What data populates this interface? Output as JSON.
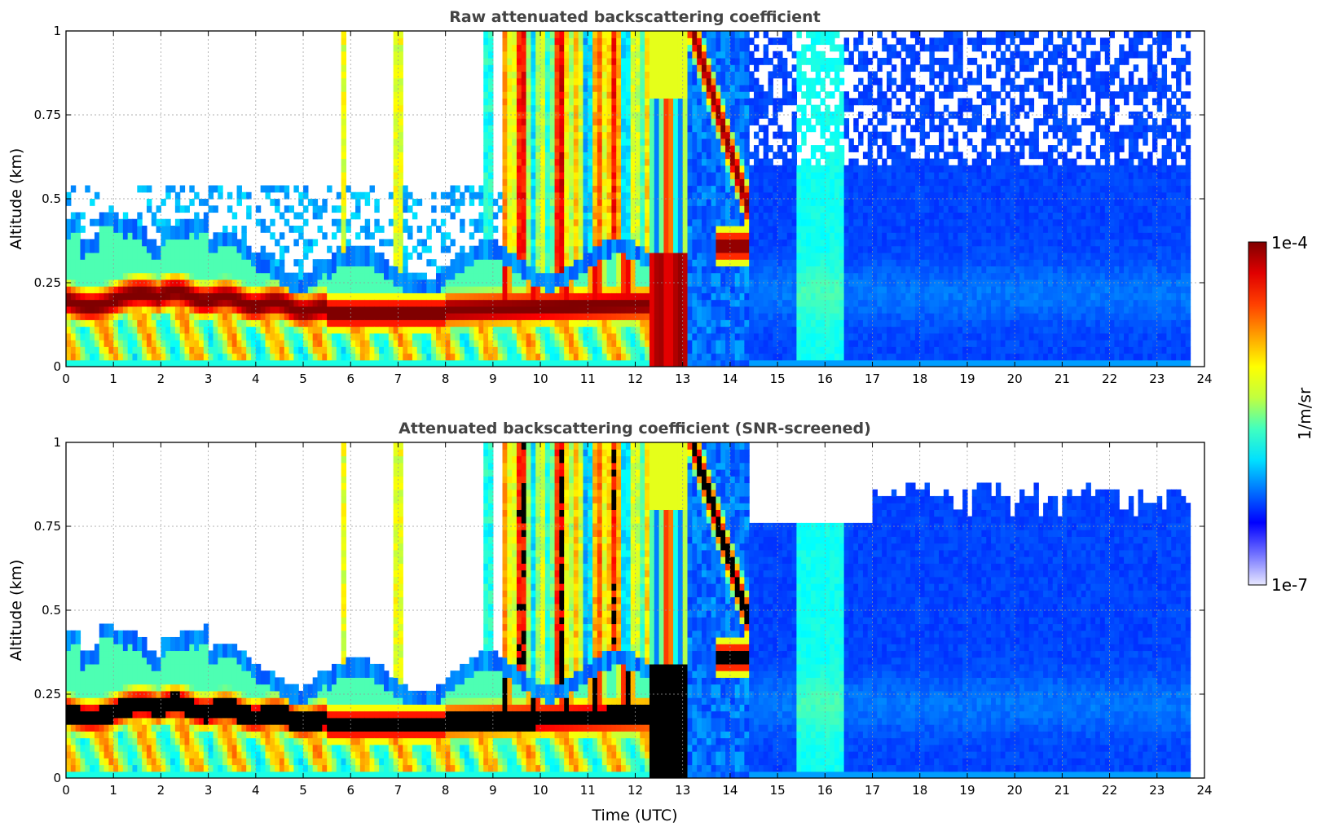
{
  "chart_data": [
    {
      "type": "heatmap",
      "title": "Raw attenuated backscattering coefficient",
      "xlabel": "",
      "ylabel": "Altitude (km)",
      "xlim": [
        0,
        24
      ],
      "ylim": [
        0,
        1
      ],
      "x_ticks": [
        0,
        1,
        2,
        3,
        4,
        5,
        6,
        7,
        8,
        9,
        10,
        11,
        12,
        13,
        14,
        15,
        16,
        17,
        18,
        19,
        20,
        21,
        22,
        23,
        24
      ],
      "y_ticks": [
        0,
        0.25,
        0.5,
        0.75,
        1
      ],
      "y_tick_labels": [
        "0",
        "0.25",
        "0.5",
        "0.75",
        "1"
      ],
      "grid": true,
      "data_extent_hours": [
        0,
        23.7
      ],
      "features": [
        {
          "time": [
            0,
            12.3
          ],
          "altitude": [
            0.1,
            0.3
          ],
          "level": "high (dark red)"
        },
        {
          "time": [
            12.3,
            13.1
          ],
          "altitude": [
            0,
            0.35
          ],
          "level": "high (dark red)"
        },
        {
          "time": [
            13.1,
            13.9
          ],
          "altitude": [
            0.6,
            1.0
          ],
          "level": "high (red descending)"
        },
        {
          "time": [
            13.7,
            14.4
          ],
          "altitude": [
            0.28,
            0.45
          ],
          "level": "high (red blob)"
        },
        {
          "time": [
            9.2,
            12.4
          ],
          "altitude": [
            0,
            1.0
          ],
          "level": "medium-high (vertical streaks)"
        },
        {
          "time": [
            14.4,
            23.7
          ],
          "altitude": [
            0,
            1.0
          ],
          "level": "low (blue)"
        },
        {
          "time": [
            0,
            12.0
          ],
          "altitude": [
            0,
            0.12
          ],
          "level": "medium (yellow-cyan)"
        }
      ]
    },
    {
      "type": "heatmap",
      "title": "Attenuated backscattering coefficient (SNR-screened)",
      "xlabel": "Time (UTC)",
      "ylabel": "Altitude (km)",
      "xlim": [
        0,
        24
      ],
      "ylim": [
        0,
        1
      ],
      "x_ticks": [
        0,
        1,
        2,
        3,
        4,
        5,
        6,
        7,
        8,
        9,
        10,
        11,
        12,
        13,
        14,
        15,
        16,
        17,
        18,
        19,
        20,
        21,
        22,
        23,
        24
      ],
      "y_ticks": [
        0,
        0.25,
        0.5,
        0.75,
        1
      ],
      "y_tick_labels": [
        "0",
        "0.25",
        "0.5",
        "0.75",
        "1"
      ],
      "grid": true,
      "data_extent_hours": [
        0,
        23.7
      ],
      "features": [
        {
          "time": [
            0,
            12.3
          ],
          "altitude": [
            0.12,
            0.27
          ],
          "level": "saturated (black)"
        },
        {
          "time": [
            12.3,
            13.1
          ],
          "altitude": [
            0,
            0.3
          ],
          "level": "high (dark red / black)"
        },
        {
          "time": [
            13.1,
            13.9
          ],
          "altitude": [
            0.6,
            1.0
          ],
          "level": "saturated (black descending)"
        },
        {
          "time": [
            13.7,
            14.4
          ],
          "altitude": [
            0.28,
            0.45
          ],
          "level": "saturated (black blob)"
        },
        {
          "time": [
            14.4,
            23.7
          ],
          "altitude": [
            0,
            0.75
          ],
          "level": "low (blue)"
        },
        {
          "time": [
            17,
            23.7
          ],
          "altitude": [
            0.75,
            0.9
          ],
          "level": "low (blue, patchy)"
        }
      ]
    }
  ],
  "colorbar": {
    "max_label": "1e-4",
    "min_label": "1e-7",
    "unit_label": "1/m/sr",
    "colors": [
      "#e8e8ff",
      "#7070ff",
      "#0000ff",
      "#0070ff",
      "#00e0ff",
      "#40ffc0",
      "#c0ff40",
      "#ffff00",
      "#ffa000",
      "#ff4000",
      "#e00000",
      "#800000"
    ],
    "scale": "log"
  }
}
